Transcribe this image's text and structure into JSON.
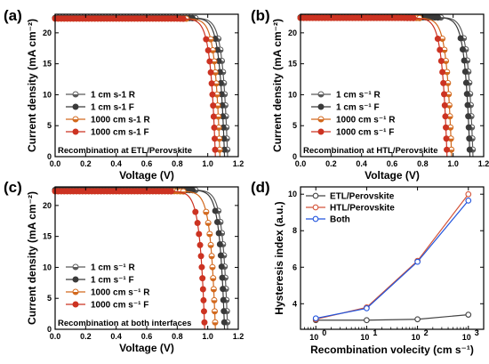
{
  "colors": {
    "gray": "#5a5a5a",
    "dark": "#3a3a3a",
    "orange": "#d2691e",
    "red": "#cc3322",
    "blue": "#2255dd",
    "ecol": "#444444",
    "hcol": "#d4553a"
  },
  "chart_data": [
    {
      "type": "line",
      "panel_label": "(a)",
      "xlabel": "Voltage (V)",
      "ylabel": "Current density (mA cm⁻²)",
      "xlim": [
        0,
        1.2
      ],
      "ylim": [
        0,
        23
      ],
      "xticks": [
        "0.0",
        "0.2",
        "0.4",
        "0.6",
        "0.8",
        "1.0",
        "1.2"
      ],
      "yticks": [
        "0",
        "5",
        "10",
        "15",
        "20"
      ],
      "annotation": "Recombination at ETL/Perovskite",
      "series": [
        {
          "name": "1 cm s-1 R",
          "jsc": 22.4,
          "voc": 1.13,
          "color": "gray"
        },
        {
          "name": "1 cm s-1 F",
          "jsc": 22.4,
          "voc": 1.11,
          "color": "dark"
        },
        {
          "name": "1000 cm s-1 R",
          "jsc": 22.3,
          "voc": 1.08,
          "color": "orange"
        },
        {
          "name": "1000 cm s-1 F",
          "jsc": 22.3,
          "voc": 1.05,
          "color": "red"
        }
      ]
    },
    {
      "type": "line",
      "panel_label": "(b)",
      "xlabel": "Voltage (V)",
      "ylabel": "Current density (mA cm⁻²)",
      "xlim": [
        0,
        1.2
      ],
      "ylim": [
        0,
        23
      ],
      "xticks": [
        "0.0",
        "0.2",
        "0.4",
        "0.6",
        "0.8",
        "1.0",
        "1.2"
      ],
      "yticks": [
        "0",
        "5",
        "10",
        "15",
        "20"
      ],
      "annotation": "Recombination at HTL/Perovskite",
      "series": [
        {
          "name": "1 cm s⁻¹ R",
          "jsc": 22.5,
          "voc": 1.13,
          "color": "gray"
        },
        {
          "name": "1 cm s⁻¹ F",
          "jsc": 22.5,
          "voc": 1.11,
          "color": "dark"
        },
        {
          "name": "1000 cm s⁻¹ R",
          "jsc": 22.4,
          "voc": 0.99,
          "color": "orange"
        },
        {
          "name": "1000 cm s⁻¹ F",
          "jsc": 22.4,
          "voc": 0.96,
          "color": "red"
        }
      ]
    },
    {
      "type": "line",
      "panel_label": "(c)",
      "xlabel": "Voltage (V)",
      "ylabel": "Current density (mA cm⁻²)",
      "xlim": [
        0,
        1.2
      ],
      "ylim": [
        0,
        23
      ],
      "xticks": [
        "0.0",
        "0.2",
        "0.4",
        "0.6",
        "0.8",
        "1.0",
        "1.2"
      ],
      "yticks": [
        "0",
        "5",
        "10",
        "15",
        "20"
      ],
      "annotation": "Recombination at both interfaces",
      "series": [
        {
          "name": "1 cm s⁻¹ R",
          "jsc": 22.5,
          "voc": 1.13,
          "color": "gray"
        },
        {
          "name": "1 cm s⁻¹ F",
          "jsc": 22.5,
          "voc": 1.11,
          "color": "dark"
        },
        {
          "name": "1000 cm s⁻¹ R",
          "jsc": 22.3,
          "voc": 1.05,
          "color": "orange"
        },
        {
          "name": "1000 cm s⁻¹ F",
          "jsc": 22.3,
          "voc": 0.98,
          "color": "red"
        }
      ]
    },
    {
      "type": "line",
      "panel_label": "(d)",
      "xlabel": "Recombination volecity (cm s⁻¹)",
      "ylabel": "Hysteresis index (a.u.)",
      "xscale": "log",
      "xlim": [
        0.5,
        2000
      ],
      "ylim": [
        2.6,
        10.4
      ],
      "xticks": [
        {
          "v": 1,
          "base": "10",
          "exp": "0"
        },
        {
          "v": 10,
          "base": "10",
          "exp": "1"
        },
        {
          "v": 100,
          "base": "10",
          "exp": "2"
        },
        {
          "v": 1000,
          "base": "10",
          "exp": "3"
        }
      ],
      "yticks": [
        "4",
        "6",
        "8",
        "10"
      ],
      "x": [
        1,
        10,
        100,
        1000
      ],
      "series": [
        {
          "name": "ETL/Perovskite",
          "values": [
            3.1,
            3.1,
            3.15,
            3.4
          ],
          "color": "ecol"
        },
        {
          "name": "HTL/Perovskite",
          "values": [
            3.15,
            3.8,
            6.35,
            10.0
          ],
          "color": "hcol"
        },
        {
          "name": "Both",
          "values": [
            3.2,
            3.75,
            6.3,
            9.65
          ],
          "color": "blue"
        }
      ]
    }
  ]
}
